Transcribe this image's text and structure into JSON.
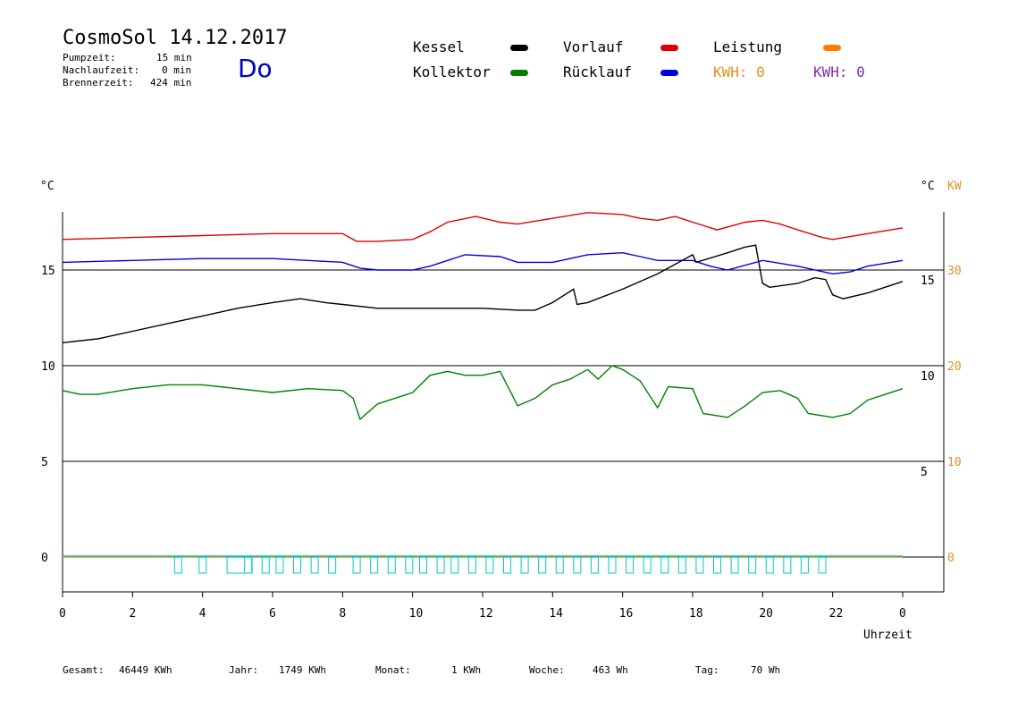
{
  "header": {
    "title": "CosmoSol 14.12.2017",
    "day": "Do",
    "stats": [
      {
        "label": "Pumpzeit:",
        "value": "15 min"
      },
      {
        "label": "Nachlaufzeit:",
        "value": "0 min"
      },
      {
        "label": "Brennerzeit:",
        "value": "424 min"
      }
    ]
  },
  "legend": {
    "items": [
      {
        "label": "Kessel",
        "color": "#000000"
      },
      {
        "label": "Vorlauf",
        "color": "#e00000"
      },
      {
        "label": "Leistung",
        "color": "#ff8000"
      },
      {
        "label": "Kollektor",
        "color": "#008000"
      },
      {
        "label": "Rücklauf",
        "color": "#0000e0"
      }
    ],
    "kwh_orange": "KWH: 0",
    "kwh_purple": "KWH: 0"
  },
  "footer": [
    {
      "label": "Gesamt:",
      "value": "46449 KWh"
    },
    {
      "label": "Jahr:",
      "value": "1749 KWh"
    },
    {
      "label": "Monat:",
      "value": "1 KWh"
    },
    {
      "label": "Woche:",
      "value": "463 Wh"
    },
    {
      "label": "Tag:",
      "value": "70 Wh"
    }
  ],
  "chart_data": {
    "type": "line",
    "title": "CosmoSol 14.12.2017",
    "xlabel": "Uhrzeit",
    "x_ticks": [
      "0",
      "2",
      "4",
      "6",
      "8",
      "10",
      "12",
      "14",
      "16",
      "18",
      "20",
      "22",
      "0"
    ],
    "xlim": [
      0,
      24
    ],
    "ylabel_left": "°C",
    "ylabel_right": "°C",
    "ylabel_right2": "KW",
    "left_ticks": [
      "15",
      "10",
      "5",
      "0"
    ],
    "right_ticks": [
      "15",
      "10",
      "5"
    ],
    "right2_ticks": [
      "30",
      "20",
      "10",
      "0"
    ],
    "grid": "horizontal",
    "series": [
      {
        "name": "Vorlauf",
        "color": "#e00000",
        "points": [
          [
            0,
            16.6
          ],
          [
            2,
            16.7
          ],
          [
            4,
            16.8
          ],
          [
            6,
            16.9
          ],
          [
            8,
            16.9
          ],
          [
            8.4,
            16.5
          ],
          [
            9,
            16.5
          ],
          [
            10,
            16.6
          ],
          [
            10.5,
            17.0
          ],
          [
            11,
            17.5
          ],
          [
            11.8,
            17.8
          ],
          [
            12.5,
            17.5
          ],
          [
            13,
            17.4
          ],
          [
            14,
            17.7
          ],
          [
            15,
            18.0
          ],
          [
            16,
            17.9
          ],
          [
            16.5,
            17.7
          ],
          [
            17,
            17.6
          ],
          [
            17.5,
            17.8
          ],
          [
            18,
            17.5
          ],
          [
            18.7,
            17.1
          ],
          [
            19.5,
            17.5
          ],
          [
            20,
            17.6
          ],
          [
            20.5,
            17.4
          ],
          [
            21,
            17.1
          ],
          [
            21.7,
            16.7
          ],
          [
            22,
            16.6
          ],
          [
            23,
            16.9
          ],
          [
            24,
            17.2
          ]
        ]
      },
      {
        "name": "Rücklauf",
        "color": "#0000e0",
        "points": [
          [
            0,
            15.4
          ],
          [
            2,
            15.5
          ],
          [
            4,
            15.6
          ],
          [
            6,
            15.6
          ],
          [
            7,
            15.5
          ],
          [
            8,
            15.4
          ],
          [
            8.5,
            15.1
          ],
          [
            9,
            15.0
          ],
          [
            10,
            15.0
          ],
          [
            10.5,
            15.2
          ],
          [
            11,
            15.5
          ],
          [
            11.5,
            15.8
          ],
          [
            12.5,
            15.7
          ],
          [
            13,
            15.4
          ],
          [
            14,
            15.4
          ],
          [
            14.5,
            15.6
          ],
          [
            15,
            15.8
          ],
          [
            16,
            15.9
          ],
          [
            16.5,
            15.7
          ],
          [
            17,
            15.5
          ],
          [
            18,
            15.5
          ],
          [
            18.5,
            15.2
          ],
          [
            19,
            15.0
          ],
          [
            20,
            15.5
          ],
          [
            21,
            15.2
          ],
          [
            22,
            14.8
          ],
          [
            22.5,
            14.9
          ],
          [
            23,
            15.2
          ],
          [
            24,
            15.5
          ]
        ]
      },
      {
        "name": "Kessel",
        "color": "#000000",
        "points": [
          [
            0,
            11.2
          ],
          [
            1,
            11.4
          ],
          [
            2,
            11.8
          ],
          [
            3,
            12.2
          ],
          [
            4,
            12.6
          ],
          [
            5,
            13.0
          ],
          [
            6,
            13.3
          ],
          [
            6.8,
            13.5
          ],
          [
            7.5,
            13.3
          ],
          [
            8,
            13.2
          ],
          [
            9,
            13.0
          ],
          [
            10,
            13.0
          ],
          [
            11,
            13.0
          ],
          [
            12,
            13.0
          ],
          [
            13,
            12.9
          ],
          [
            13.5,
            12.9
          ],
          [
            14,
            13.3
          ],
          [
            14.6,
            14.0
          ],
          [
            14.7,
            13.2
          ],
          [
            15,
            13.3
          ],
          [
            16,
            14.0
          ],
          [
            17,
            14.8
          ],
          [
            17.5,
            15.3
          ],
          [
            18,
            15.8
          ],
          [
            18.1,
            15.4
          ],
          [
            19,
            15.9
          ],
          [
            19.5,
            16.2
          ],
          [
            19.8,
            16.3
          ],
          [
            20,
            14.3
          ],
          [
            20.2,
            14.1
          ],
          [
            21,
            14.3
          ],
          [
            21.5,
            14.6
          ],
          [
            21.8,
            14.5
          ],
          [
            22,
            13.7
          ],
          [
            22.3,
            13.5
          ],
          [
            23,
            13.8
          ],
          [
            24,
            14.4
          ]
        ]
      },
      {
        "name": "Kollektor",
        "color": "#008000",
        "points": [
          [
            0,
            8.7
          ],
          [
            0.5,
            8.5
          ],
          [
            1,
            8.5
          ],
          [
            2,
            8.8
          ],
          [
            3,
            9.0
          ],
          [
            4,
            9.0
          ],
          [
            5,
            8.8
          ],
          [
            6,
            8.6
          ],
          [
            7,
            8.8
          ],
          [
            8,
            8.7
          ],
          [
            8.3,
            8.3
          ],
          [
            8.5,
            7.2
          ],
          [
            9,
            8.0
          ],
          [
            10,
            8.6
          ],
          [
            10.5,
            9.5
          ],
          [
            11,
            9.7
          ],
          [
            11.5,
            9.5
          ],
          [
            12,
            9.5
          ],
          [
            12.5,
            9.7
          ],
          [
            13,
            7.9
          ],
          [
            13.5,
            8.3
          ],
          [
            14,
            9.0
          ],
          [
            14.5,
            9.3
          ],
          [
            15,
            9.8
          ],
          [
            15.3,
            9.3
          ],
          [
            15.7,
            10.0
          ],
          [
            16,
            9.8
          ],
          [
            16.5,
            9.2
          ],
          [
            17,
            7.8
          ],
          [
            17.3,
            8.9
          ],
          [
            18,
            8.8
          ],
          [
            18.3,
            7.5
          ],
          [
            19,
            7.3
          ],
          [
            19.5,
            7.9
          ],
          [
            20,
            8.6
          ],
          [
            20.5,
            8.7
          ],
          [
            21,
            8.3
          ],
          [
            21.3,
            7.5
          ],
          [
            22,
            7.3
          ],
          [
            22.5,
            7.5
          ],
          [
            23,
            8.2
          ],
          [
            24,
            8.8
          ]
        ]
      },
      {
        "name": "Leistung",
        "color": "#ff8000",
        "points": [
          [
            0,
            0
          ],
          [
            24,
            0
          ]
        ]
      }
    ],
    "pump_pulses_hours": [
      3.2,
      3.9,
      4.7,
      5.2,
      5.7,
      6.1,
      6.6,
      7.1,
      7.6,
      8.3,
      8.8,
      9.3,
      9.8,
      10.2,
      10.7,
      11.1,
      11.6,
      12.1,
      12.6,
      13.1,
      13.6,
      14.1,
      14.6,
      15.1,
      15.6,
      16.1,
      16.6,
      17.1,
      17.6,
      18.1,
      18.6,
      19.1,
      19.6,
      20.1,
      20.6,
      21.1,
      21.6
    ],
    "pump_color": "#00c8c8"
  }
}
